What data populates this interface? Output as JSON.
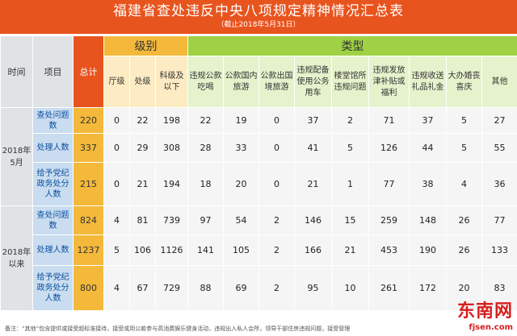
{
  "title": "福建省查处违反中央八项规定精神情况汇总表",
  "subtitle": "（截止2018年5月31日）",
  "headers": {
    "time": "时间",
    "item": "项目",
    "total": "总计",
    "level_group": "级别",
    "type_group": "类型",
    "levels": [
      "厅级",
      "处级",
      "科级及以下"
    ],
    "types": [
      "违规公款吃喝",
      "公款国内旅游",
      "公款出国境旅游",
      "违规配备使用公务用车",
      "楼堂馆所违规问题",
      "违规发放津补贴或福利",
      "违规收送礼品礼金",
      "大办婚丧喜庆",
      "其他"
    ]
  },
  "periods": [
    {
      "label": "2018年5月",
      "rows": [
        {
          "item": "查处问题数",
          "values": [
            "220",
            "0",
            "22",
            "198",
            "22",
            "19",
            "0",
            "37",
            "2",
            "71",
            "37",
            "5",
            "27"
          ]
        },
        {
          "item": "处理人数",
          "values": [
            "337",
            "0",
            "29",
            "308",
            "28",
            "33",
            "0",
            "41",
            "5",
            "126",
            "44",
            "5",
            "55"
          ]
        },
        {
          "item": "给予党纪政务处分人数",
          "values": [
            "215",
            "0",
            "21",
            "194",
            "18",
            "20",
            "0",
            "21",
            "1",
            "77",
            "38",
            "4",
            "36"
          ]
        }
      ]
    },
    {
      "label": "2018年以来",
      "rows": [
        {
          "item": "查处问题数",
          "values": [
            "824",
            "4",
            "81",
            "739",
            "97",
            "54",
            "2",
            "146",
            "15",
            "259",
            "148",
            "26",
            "77"
          ]
        },
        {
          "item": "处理人数",
          "values": [
            "1237",
            "5",
            "106",
            "1126",
            "141",
            "105",
            "2",
            "166",
            "21",
            "453",
            "190",
            "26",
            "133"
          ]
        },
        {
          "item": "给予党纪政务处分人数",
          "values": [
            "800",
            "4",
            "67",
            "729",
            "88",
            "69",
            "2",
            "95",
            "10",
            "261",
            "172",
            "20",
            "83"
          ]
        }
      ]
    }
  ],
  "note": "备注：“其他”包含提供或接受超标准接待，接受或用公款参与高消费娱乐健身活动，违规出入私人会所，领导干部住房违规问题，接受管理",
  "logo": {
    "cn": "东南网",
    "en": "fjsen.com"
  }
}
